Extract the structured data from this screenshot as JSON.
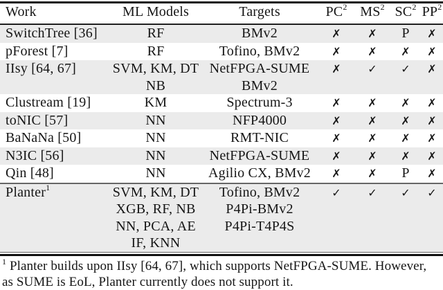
{
  "page": {
    "background": "#ffffff",
    "stripe_color": "#ebebeb",
    "text_color": "#161616",
    "rule_color": "#111111"
  },
  "table": {
    "header": {
      "work": "Work",
      "models": "ML Models",
      "targets": "Targets",
      "metrics": [
        {
          "base": "PC",
          "sup": "2"
        },
        {
          "base": "MS",
          "sup": "2"
        },
        {
          "base": "SC",
          "sup": "2"
        },
        {
          "base": "PP",
          "sup": "2"
        }
      ]
    },
    "rows": [
      {
        "work": "SwitchTree [36]",
        "models": [
          "RF"
        ],
        "targets": [
          "BMv2"
        ],
        "marks": [
          "✗",
          "✗",
          "P",
          "✗"
        ],
        "shaded": true
      },
      {
        "work": "pForest [7]",
        "models": [
          "RF"
        ],
        "targets": [
          "Tofino, BMv2"
        ],
        "marks": [
          "✗",
          "✗",
          "✗",
          "✗"
        ],
        "shaded": false
      },
      {
        "work": "IIsy [64, 67]",
        "models": [
          "SVM, KM, DT",
          "NB"
        ],
        "targets": [
          "NetFPGA-SUME",
          "BMv2"
        ],
        "marks": [
          "✗",
          "✓",
          "✓",
          "✗"
        ],
        "shaded": true
      },
      {
        "work": "Clustream [19]",
        "models": [
          "KM"
        ],
        "targets": [
          "Spectrum-3"
        ],
        "marks": [
          "✗",
          "✗",
          "✗",
          "✗"
        ],
        "shaded": false
      },
      {
        "work": "toNIC [57]",
        "models": [
          "NN"
        ],
        "targets": [
          "NFP4000"
        ],
        "marks": [
          "✗",
          "✗",
          "✗",
          "✗"
        ],
        "shaded": true
      },
      {
        "work": "BaNaNa [50]",
        "models": [
          "NN"
        ],
        "targets": [
          "RMT-NIC"
        ],
        "marks": [
          "✗",
          "✗",
          "✗",
          "✗"
        ],
        "shaded": false
      },
      {
        "work": "N3IC [56]",
        "models": [
          "NN"
        ],
        "targets": [
          "NetFPGA-SUME"
        ],
        "marks": [
          "✗",
          "✗",
          "✗",
          "✗"
        ],
        "shaded": true
      },
      {
        "work": "Qin [48]",
        "models": [
          "NN"
        ],
        "targets": [
          "Agilio CX, BMv2"
        ],
        "marks": [
          "✗",
          "✗",
          "P",
          "✗"
        ],
        "shaded": false,
        "rule_after": true
      },
      {
        "work": "Planter",
        "work_sup": "1",
        "models": [
          "SVM, KM, DT",
          "XGB, RF, NB",
          "NN, PCA, AE",
          "IF, KNN"
        ],
        "targets": [
          "Tofino, BMv2",
          "P4Pi-BMv2",
          "P4Pi-T4P4S"
        ],
        "marks": [
          "✓",
          "✓",
          "✓",
          "✓"
        ],
        "shaded": true
      }
    ]
  },
  "footnote": {
    "sup": "1",
    "line1": "Planter builds upon IIsy [64, 67], which supports NetFPGA-SUME. However,",
    "line2": "as SUME is EoL, Planter currently does not support it."
  }
}
